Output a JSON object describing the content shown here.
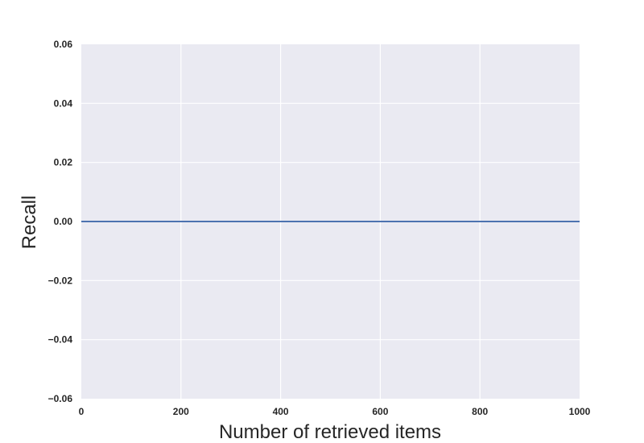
{
  "chart_data": {
    "type": "line",
    "title": "",
    "xlabel": "Number of retrieved items",
    "ylabel": "Recall",
    "xlim": [
      0,
      1000
    ],
    "ylim": [
      -0.06,
      0.06
    ],
    "xticks": [
      "0",
      "200",
      "400",
      "600",
      "800",
      "1000"
    ],
    "yticks": [
      "0.06",
      "0.04",
      "0.02",
      "0.00",
      "−0.02",
      "−0.04",
      "−0.06"
    ],
    "grid": true,
    "legend": "none",
    "style": {
      "background": "#eaeaf2",
      "grid_color": "#ffffff",
      "line_color": "#4c72b0"
    },
    "series": [
      {
        "x": [
          0,
          100,
          200,
          300,
          400,
          500,
          600,
          700,
          800,
          900,
          1000
        ],
        "y": [
          0,
          0,
          0,
          0,
          0,
          0,
          0,
          0,
          0,
          0,
          0
        ]
      }
    ]
  }
}
